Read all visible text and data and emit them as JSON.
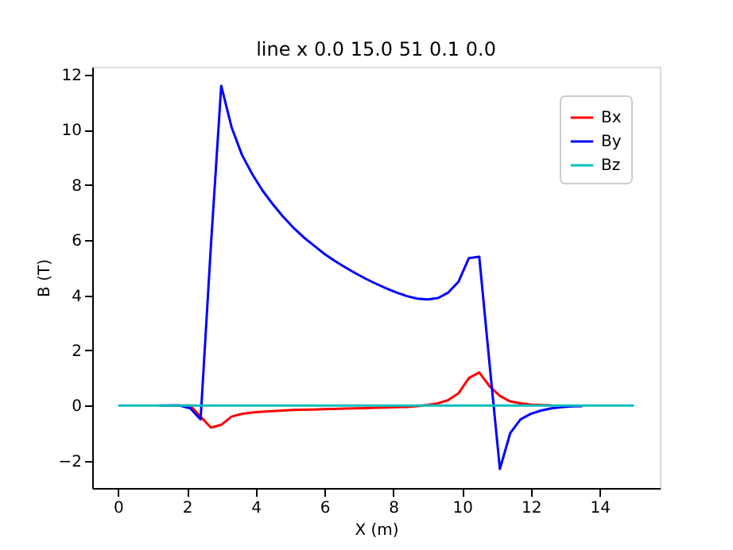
{
  "chart_data": {
    "type": "line",
    "title": "line x 0.0 15.0 51 0.1 0.0",
    "xlabel": "X (m)",
    "ylabel": "B (T)",
    "x": [
      0.0,
      0.3,
      0.6,
      0.9,
      1.2,
      1.5,
      1.8,
      2.1,
      2.4,
      2.7,
      3.0,
      3.3,
      3.6,
      3.9,
      4.2,
      4.5,
      4.8,
      5.1,
      5.4,
      5.7,
      6.0,
      6.3,
      6.6,
      6.9,
      7.2,
      7.5,
      7.8,
      8.1,
      8.4,
      8.7,
      9.0,
      9.3,
      9.6,
      9.9,
      10.2,
      10.5,
      10.8,
      11.1,
      11.4,
      11.7,
      12.0,
      12.3,
      12.6,
      12.9,
      13.2,
      13.5,
      13.8,
      14.1,
      14.4,
      14.7,
      15.0
    ],
    "series": [
      {
        "name": "Bx",
        "color": "#ff0000",
        "values": [
          null,
          null,
          null,
          null,
          null,
          0,
          0,
          0,
          -0.4,
          -0.8,
          -0.7,
          -0.4,
          -0.3,
          -0.25,
          -0.22,
          -0.2,
          -0.18,
          -0.16,
          -0.15,
          -0.14,
          -0.13,
          -0.12,
          -0.11,
          -0.1,
          -0.09,
          -0.08,
          -0.07,
          -0.06,
          -0.05,
          -0.02,
          0.02,
          0.08,
          0.2,
          0.45,
          1.0,
          1.2,
          0.7,
          0.35,
          0.15,
          0.08,
          0.04,
          0.02,
          0.01,
          null,
          null,
          null,
          null,
          null,
          null,
          null,
          null
        ]
      },
      {
        "name": "By",
        "color": "#0000ff",
        "values": [
          null,
          null,
          null,
          null,
          0,
          0,
          0,
          -0.1,
          -0.5,
          5.8,
          11.6,
          10.1,
          9.1,
          8.4,
          7.8,
          7.3,
          6.85,
          6.45,
          6.1,
          5.8,
          5.5,
          5.25,
          5.02,
          4.8,
          4.6,
          4.42,
          4.25,
          4.1,
          3.97,
          3.88,
          3.85,
          3.9,
          4.1,
          4.5,
          5.35,
          5.4,
          1.5,
          -2.3,
          -1.0,
          -0.5,
          -0.3,
          -0.18,
          -0.1,
          -0.06,
          -0.03,
          -0.02,
          null,
          null,
          null,
          null,
          null
        ]
      },
      {
        "name": "Bz",
        "color": "#00bfbf",
        "values": [
          0,
          0,
          0,
          0,
          0,
          0,
          0,
          0,
          0,
          0,
          0,
          0,
          0,
          0,
          0,
          0,
          0,
          0,
          0,
          0,
          0,
          0,
          0,
          0,
          0,
          0,
          0,
          0,
          0,
          0,
          0,
          0,
          0,
          0,
          0,
          0,
          0,
          0,
          0,
          0,
          0,
          0,
          0,
          0,
          0,
          0,
          0,
          0,
          0,
          0,
          0
        ]
      }
    ],
    "xlim": [
      -0.75,
      15.75
    ],
    "xticks": [
      0,
      2,
      4,
      6,
      8,
      10,
      12,
      14
    ],
    "ylim": [
      -2.99,
      12.29
    ],
    "yticks": [
      -2,
      0,
      2,
      4,
      6,
      8,
      10,
      12
    ],
    "legend": "top right",
    "grid": false
  }
}
